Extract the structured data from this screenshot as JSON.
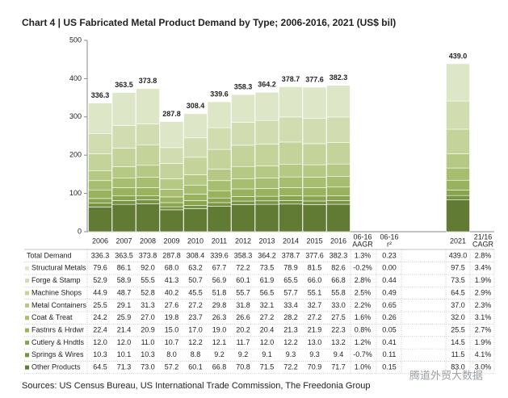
{
  "chart_data": {
    "type": "bar",
    "stacked": true,
    "title": "Chart 4 | US Fabricated Metal Product Demand by Type; 2006-2016, 2021 (US$ bil)",
    "source": "Sources: US Census Bureau, US International Trade Commission, The Freedonia Group",
    "watermark": "腾道外贸大数据",
    "categories": [
      "2006",
      "2007",
      "2008",
      "2009",
      "2010",
      "2011",
      "2012",
      "2013",
      "2014",
      "2015",
      "2016",
      "2021"
    ],
    "stat_headers": [
      [
        "06-16",
        "AAGR"
      ],
      [
        "06-16",
        "r²"
      ],
      [
        "21/16",
        "CAGR"
      ]
    ],
    "ylim": [
      0,
      500
    ],
    "yticks": [
      0,
      100,
      200,
      300,
      400,
      500
    ],
    "totals": {
      "name": "Total Demand",
      "values": [
        336.3,
        363.5,
        373.8,
        287.8,
        308.4,
        339.6,
        358.3,
        364.2,
        378.7,
        377.6,
        382.3,
        439.0
      ],
      "value_labels": [
        "336.3",
        "363.5",
        "373.8",
        "287.8",
        "308.4",
        "339.6",
        "358.3",
        "364.2",
        "378.7",
        "377.6",
        "382.3",
        "439.0"
      ],
      "aagr": "1.3%",
      "r2": "0.23",
      "cagr": "2.8%"
    },
    "series": [
      {
        "name": "Structural Metals",
        "color": "#dde6c6",
        "values": [
          79.6,
          86.1,
          92.0,
          68.0,
          63.2,
          67.7,
          72.2,
          73.5,
          78.9,
          81.5,
          82.6,
          97.5
        ],
        "value_labels": [
          "79.6",
          "86.1",
          "92.0",
          "68.0",
          "63.2",
          "67.7",
          "72.2",
          "73.5",
          "78.9",
          "81.5",
          "82.6",
          "97.5"
        ],
        "aagr": "-0.2%",
        "r2": "0.00",
        "cagr": "3.4%"
      },
      {
        "name": "Forge & Stamp",
        "color": "#d1ddb1",
        "values": [
          52.9,
          58.9,
          55.5,
          41.3,
          50.7,
          56.9,
          60.1,
          61.9,
          65.5,
          66.0,
          66.8,
          73.5
        ],
        "value_labels": [
          "52.9",
          "58.9",
          "55.5",
          "41.3",
          "50.7",
          "56.9",
          "60.1",
          "61.9",
          "65.5",
          "66.0",
          "66.8",
          "73.5"
        ],
        "aagr": "2.8%",
        "r2": "0.44",
        "cagr": "1.9%"
      },
      {
        "name": "Machine Shops",
        "color": "#c3d39a",
        "values": [
          44.9,
          48.7,
          52.8,
          40.2,
          45.5,
          51.8,
          55.7,
          56.5,
          57.7,
          55.1,
          55.8,
          64.5
        ],
        "value_labels": [
          "44.9",
          "48.7",
          "52.8",
          "40.2",
          "45.5",
          "51.8",
          "55.7",
          "56.5",
          "57.7",
          "55.1",
          "55.8",
          "64.5"
        ],
        "aagr": "2.5%",
        "r2": "0.49",
        "cagr": "2.9%"
      },
      {
        "name": "Metal Containers",
        "color": "#b5c985",
        "values": [
          25.5,
          29.1,
          31.3,
          27.6,
          27.2,
          29.8,
          31.8,
          32.1,
          33.4,
          32.7,
          33.0,
          37.0
        ],
        "value_labels": [
          "25.5",
          "29.1",
          "31.3",
          "27.6",
          "27.2",
          "29.8",
          "31.8",
          "32.1",
          "33.4",
          "32.7",
          "33.0",
          "37.0"
        ],
        "aagr": "2.2%",
        "r2": "0.65",
        "cagr": "2.3%"
      },
      {
        "name": "Coat & Treat",
        "color": "#a7be70",
        "values": [
          24.2,
          25.9,
          27.0,
          19.8,
          23.7,
          26.3,
          26.6,
          27.2,
          28.2,
          27.2,
          27.5,
          32.0
        ],
        "value_labels": [
          "24.2",
          "25.9",
          "27.0",
          "19.8",
          "23.7",
          "26.3",
          "26.6",
          "27.2",
          "28.2",
          "27.2",
          "27.5",
          "32.0"
        ],
        "aagr": "1.6%",
        "r2": "0.26",
        "cagr": "3.1%"
      },
      {
        "name": "Fastnrs & Hrdwr",
        "color": "#98b25e",
        "values": [
          22.4,
          21.4,
          20.9,
          15.0,
          17.0,
          19.0,
          20.2,
          20.4,
          21.3,
          21.9,
          22.3,
          25.5
        ],
        "value_labels": [
          "22.4",
          "21.4",
          "20.9",
          "15.0",
          "17.0",
          "19.0",
          "20.2",
          "20.4",
          "21.3",
          "21.9",
          "22.3",
          "25.5"
        ],
        "aagr": "0.8%",
        "r2": "0.05",
        "cagr": "2.7%"
      },
      {
        "name": "Cutlery & Hndtls",
        "color": "#88a44e",
        "values": [
          12.0,
          12.0,
          11.0,
          10.7,
          12.2,
          12.1,
          11.7,
          12.0,
          12.2,
          13.0,
          13.2,
          14.5
        ],
        "value_labels": [
          "12.0",
          "12.0",
          "11.0",
          "10.7",
          "12.2",
          "12.1",
          "11.7",
          "12.0",
          "12.2",
          "13.0",
          "13.2",
          "14.5"
        ],
        "aagr": "1.2%",
        "r2": "0.41",
        "cagr": "1.9%"
      },
      {
        "name": "Springs & Wires",
        "color": "#789442",
        "values": [
          10.3,
          10.1,
          10.3,
          8.0,
          8.8,
          9.2,
          9.2,
          9.1,
          9.3,
          9.3,
          9.4,
          11.5
        ],
        "value_labels": [
          "10.3",
          "10.1",
          "10.3",
          "8.0",
          "8.8",
          "9.2",
          "9.2",
          "9.1",
          "9.3",
          "9.3",
          "9.4",
          "11.5"
        ],
        "aagr": "-0.7%",
        "r2": "0.11",
        "cagr": "4.1%"
      },
      {
        "name": "Other Products",
        "color": "#627b34",
        "values": [
          64.5,
          71.3,
          73.0,
          57.2,
          60.1,
          66.8,
          70.8,
          71.5,
          72.2,
          70.9,
          71.7,
          83.0
        ],
        "value_labels": [
          "64.5",
          "71.3",
          "73.0",
          "57.2",
          "60.1",
          "66.8",
          "70.8",
          "71.5",
          "72.2",
          "70.9",
          "71.7",
          "83.0"
        ],
        "aagr": "1.0%",
        "r2": "0.15",
        "cagr": "3.0%"
      }
    ]
  }
}
